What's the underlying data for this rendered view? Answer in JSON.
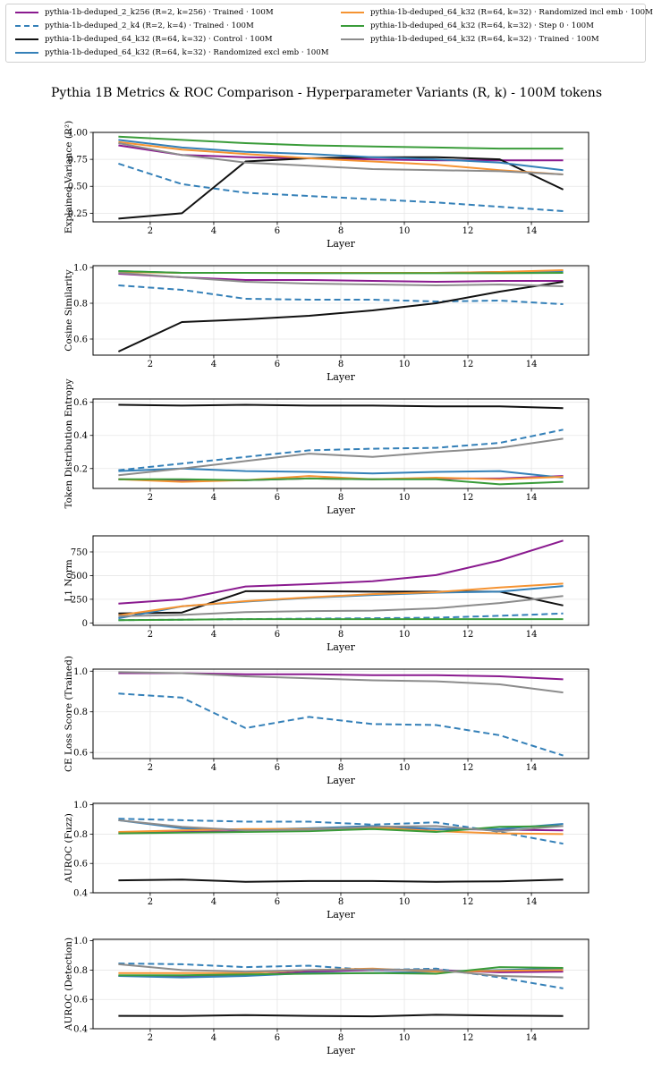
{
  "title": "Pythia 1B Metrics & ROC Comparison - Hyperparameter Variants (R, k) - 100M tokens",
  "legend": [
    {
      "key": "k256",
      "label": "pythia-1b-deduped_2_k256 (R=2, k=256) · Trained · 100M",
      "color": "#8a1a8f",
      "dash": "solid"
    },
    {
      "key": "k4",
      "label": "pythia-1b-deduped_2_k4 (R=2, k=4) · Trained · 100M",
      "color": "#3480b8",
      "dash": "dashed"
    },
    {
      "key": "control",
      "label": "pythia-1b-deduped_64_k32 (R=64, k=32) · Control · 100M",
      "color": "#111111",
      "dash": "solid"
    },
    {
      "key": "rand_excl",
      "label": "pythia-1b-deduped_64_k32 (R=64, k=32) · Randomized excl emb · 100M",
      "color": "#3480b8",
      "dash": "solid"
    },
    {
      "key": "rand_incl",
      "label": "pythia-1b-deduped_64_k32 (R=64, k=32) · Randomized incl emb · 100M",
      "color": "#f59332",
      "dash": "solid"
    },
    {
      "key": "step0",
      "label": "pythia-1b-deduped_64_k32 (R=64, k=32) · Step 0 · 100M",
      "color": "#3a9c3a",
      "dash": "solid"
    },
    {
      "key": "trained",
      "label": "pythia-1b-deduped_64_k32 (R=64, k=32) · Trained · 100M",
      "color": "#8c8c8c",
      "dash": "solid"
    }
  ],
  "chart_data": [
    {
      "type": "line",
      "ylabel": "Explained Variance (R²)",
      "xlabel": "Layer",
      "x": [
        1,
        3,
        5,
        7,
        9,
        11,
        13,
        15
      ],
      "xlim": [
        0.2,
        15.8
      ],
      "ylim": [
        0.17,
        1.0
      ],
      "xticks": [
        2,
        4,
        6,
        8,
        10,
        12,
        14
      ],
      "yticks": [
        0.25,
        0.5,
        0.75,
        1.0
      ],
      "yticklabels": [
        "0.25",
        "0.50",
        "0.75",
        "1.00"
      ],
      "series": [
        {
          "name": "k256",
          "values": [
            0.88,
            0.79,
            0.77,
            0.76,
            0.75,
            0.74,
            0.74,
            0.74
          ]
        },
        {
          "name": "k4",
          "values": [
            0.71,
            0.52,
            0.44,
            0.41,
            0.38,
            0.35,
            0.31,
            0.27
          ]
        },
        {
          "name": "control",
          "values": [
            0.2,
            0.25,
            0.73,
            0.76,
            0.77,
            0.77,
            0.75,
            0.47
          ]
        },
        {
          "name": "rand_excl",
          "values": [
            0.93,
            0.86,
            0.82,
            0.8,
            0.77,
            0.75,
            0.72,
            0.65
          ]
        },
        {
          "name": "rand_incl",
          "values": [
            0.91,
            0.84,
            0.8,
            0.76,
            0.73,
            0.7,
            0.65,
            0.61
          ]
        },
        {
          "name": "step0",
          "values": [
            0.96,
            0.93,
            0.9,
            0.88,
            0.87,
            0.86,
            0.85,
            0.85
          ]
        },
        {
          "name": "trained",
          "values": [
            0.9,
            0.79,
            0.72,
            0.69,
            0.66,
            0.65,
            0.64,
            0.61
          ]
        }
      ]
    },
    {
      "type": "line",
      "ylabel": "Cosine Similarity",
      "xlabel": "Layer",
      "x": [
        1,
        3,
        5,
        7,
        9,
        11,
        13,
        15
      ],
      "xlim": [
        0.2,
        15.8
      ],
      "ylim": [
        0.51,
        1.01
      ],
      "xticks": [
        2,
        4,
        6,
        8,
        10,
        12,
        14
      ],
      "yticks": [
        0.6,
        0.8,
        1.0
      ],
      "yticklabels": [
        "0.6",
        "0.8",
        "1.0"
      ],
      "series": [
        {
          "name": "k256",
          "values": [
            0.965,
            0.945,
            0.93,
            0.93,
            0.925,
            0.92,
            0.925,
            0.925
          ]
        },
        {
          "name": "k4",
          "values": [
            0.9,
            0.875,
            0.825,
            0.82,
            0.82,
            0.81,
            0.815,
            0.795
          ]
        },
        {
          "name": "control",
          "values": [
            0.53,
            0.695,
            0.71,
            0.73,
            0.76,
            0.8,
            0.865,
            0.92
          ]
        },
        {
          "name": "rand_excl",
          "values": [
            0.98,
            0.97,
            0.97,
            0.97,
            0.97,
            0.97,
            0.975,
            0.98
          ]
        },
        {
          "name": "rand_incl",
          "values": [
            0.975,
            0.97,
            0.97,
            0.97,
            0.97,
            0.97,
            0.975,
            0.985
          ]
        },
        {
          "name": "step0",
          "values": [
            0.98,
            0.97,
            0.97,
            0.968,
            0.968,
            0.968,
            0.968,
            0.97
          ]
        },
        {
          "name": "trained",
          "values": [
            0.97,
            0.945,
            0.92,
            0.91,
            0.905,
            0.9,
            0.905,
            0.895
          ]
        }
      ]
    },
    {
      "type": "line",
      "ylabel": "Token Distribution Entropy",
      "xlabel": "Layer",
      "x": [
        1,
        3,
        5,
        7,
        9,
        11,
        13,
        15
      ],
      "xlim": [
        0.2,
        15.8
      ],
      "ylim": [
        0.08,
        0.62
      ],
      "xticks": [
        2,
        4,
        6,
        8,
        10,
        12,
        14
      ],
      "yticks": [
        0.2,
        0.4,
        0.6
      ],
      "yticklabels": [
        "0.2",
        "0.4",
        "0.6"
      ],
      "series": [
        {
          "name": "k256",
          "values": [
            0.135,
            0.13,
            0.13,
            0.14,
            0.135,
            0.14,
            0.14,
            0.155
          ]
        },
        {
          "name": "k4",
          "values": [
            0.19,
            0.23,
            0.27,
            0.31,
            0.32,
            0.325,
            0.355,
            0.435
          ]
        },
        {
          "name": "control",
          "values": [
            0.585,
            0.58,
            0.585,
            0.58,
            0.58,
            0.575,
            0.575,
            0.565
          ]
        },
        {
          "name": "rand_excl",
          "values": [
            0.185,
            0.2,
            0.185,
            0.18,
            0.17,
            0.18,
            0.185,
            0.145
          ]
        },
        {
          "name": "rand_incl",
          "values": [
            0.135,
            0.12,
            0.13,
            0.155,
            0.135,
            0.145,
            0.135,
            0.15
          ]
        },
        {
          "name": "step0",
          "values": [
            0.135,
            0.135,
            0.13,
            0.14,
            0.135,
            0.135,
            0.105,
            0.12
          ]
        },
        {
          "name": "trained",
          "values": [
            0.16,
            0.2,
            0.245,
            0.29,
            0.27,
            0.3,
            0.325,
            0.38
          ]
        }
      ]
    },
    {
      "type": "line",
      "ylabel": "L1 Norm",
      "xlabel": "Layer",
      "x": [
        1,
        3,
        5,
        7,
        9,
        11,
        13,
        15
      ],
      "xlim": [
        0.2,
        15.8
      ],
      "ylim": [
        -25,
        920
      ],
      "xticks": [
        2,
        4,
        6,
        8,
        10,
        12,
        14
      ],
      "yticks": [
        0,
        250,
        500,
        750
      ],
      "yticklabels": [
        "0",
        "250",
        "500",
        "750"
      ],
      "series": [
        {
          "name": "k256",
          "values": [
            205,
            250,
            385,
            410,
            440,
            505,
            660,
            870
          ]
        },
        {
          "name": "k4",
          "values": [
            30,
            35,
            40,
            45,
            50,
            55,
            75,
            100
          ]
        },
        {
          "name": "control",
          "values": [
            100,
            110,
            335,
            335,
            330,
            330,
            330,
            185
          ]
        },
        {
          "name": "rand_excl",
          "values": [
            50,
            175,
            225,
            265,
            295,
            320,
            330,
            390
          ]
        },
        {
          "name": "rand_incl",
          "values": [
            80,
            175,
            230,
            270,
            305,
            325,
            375,
            415
          ]
        },
        {
          "name": "step0",
          "values": [
            30,
            35,
            40,
            40,
            40,
            40,
            40,
            40
          ]
        },
        {
          "name": "trained",
          "values": [
            70,
            85,
            115,
            125,
            130,
            155,
            210,
            285
          ]
        }
      ]
    },
    {
      "type": "line",
      "ylabel": "CE Loss Score (Trained)",
      "xlabel": "Layer",
      "x": [
        1,
        3,
        5,
        7,
        9,
        11,
        13,
        15
      ],
      "xlim": [
        0.2,
        15.8
      ],
      "ylim": [
        0.57,
        1.01
      ],
      "xticks": [
        2,
        4,
        6,
        8,
        10,
        12,
        14
      ],
      "yticks": [
        0.6,
        0.8,
        1.0
      ],
      "yticklabels": [
        "0.6",
        "0.8",
        "1.0"
      ],
      "series": [
        {
          "name": "k256",
          "values": [
            0.99,
            0.99,
            0.985,
            0.985,
            0.98,
            0.98,
            0.975,
            0.96
          ]
        },
        {
          "name": "k4",
          "values": [
            0.89,
            0.87,
            0.72,
            0.775,
            0.74,
            0.735,
            0.685,
            0.585
          ]
        },
        {
          "name": "trained",
          "values": [
            0.995,
            0.99,
            0.975,
            0.965,
            0.955,
            0.95,
            0.935,
            0.895
          ]
        }
      ]
    },
    {
      "type": "line",
      "ylabel": "AUROC (Fuzz)",
      "xlabel": "Layer",
      "x": [
        1,
        3,
        5,
        7,
        9,
        11,
        13,
        15
      ],
      "xlim": [
        0.2,
        15.8
      ],
      "ylim": [
        0.4,
        1.01
      ],
      "xticks": [
        2,
        4,
        6,
        8,
        10,
        12,
        14
      ],
      "yticks": [
        0.4,
        0.6,
        0.8,
        1.0
      ],
      "yticklabels": [
        "0.4",
        "0.6",
        "0.8",
        "1.0"
      ],
      "series": [
        {
          "name": "k256",
          "values": [
            0.81,
            0.815,
            0.82,
            0.825,
            0.845,
            0.835,
            0.83,
            0.825
          ]
        },
        {
          "name": "k4",
          "values": [
            0.905,
            0.895,
            0.885,
            0.885,
            0.865,
            0.88,
            0.815,
            0.735
          ]
        },
        {
          "name": "control",
          "values": [
            0.485,
            0.49,
            0.475,
            0.48,
            0.48,
            0.475,
            0.478,
            0.49
          ]
        },
        {
          "name": "rand_excl",
          "values": [
            0.895,
            0.84,
            0.83,
            0.84,
            0.855,
            0.835,
            0.835,
            0.87
          ]
        },
        {
          "name": "rand_incl",
          "values": [
            0.815,
            0.825,
            0.835,
            0.835,
            0.845,
            0.82,
            0.805,
            0.8
          ]
        },
        {
          "name": "step0",
          "values": [
            0.805,
            0.81,
            0.815,
            0.82,
            0.835,
            0.815,
            0.85,
            0.855
          ]
        },
        {
          "name": "trained",
          "values": [
            0.895,
            0.85,
            0.825,
            0.83,
            0.85,
            0.855,
            0.82,
            0.855
          ]
        }
      ]
    },
    {
      "type": "line",
      "ylabel": "AUROC (Detection)",
      "xlabel": "Layer",
      "x": [
        1,
        3,
        5,
        7,
        9,
        11,
        13,
        15
      ],
      "xlim": [
        0.2,
        15.8
      ],
      "ylim": [
        0.4,
        1.01
      ],
      "xticks": [
        2,
        4,
        6,
        8,
        10,
        12,
        14
      ],
      "yticks": [
        0.4,
        0.6,
        0.8,
        1.0
      ],
      "yticklabels": [
        "0.4",
        "0.6",
        "0.8",
        "1.0"
      ],
      "series": [
        {
          "name": "k256",
          "values": [
            0.76,
            0.76,
            0.765,
            0.79,
            0.8,
            0.8,
            0.785,
            0.79
          ]
        },
        {
          "name": "k4",
          "values": [
            0.845,
            0.84,
            0.82,
            0.83,
            0.8,
            0.81,
            0.75,
            0.675
          ]
        },
        {
          "name": "control",
          "values": [
            0.488,
            0.487,
            0.493,
            0.488,
            0.485,
            0.495,
            0.49,
            0.487
          ]
        },
        {
          "name": "rand_excl",
          "values": [
            0.76,
            0.75,
            0.76,
            0.78,
            0.78,
            0.79,
            0.8,
            0.81
          ]
        },
        {
          "name": "rand_incl",
          "values": [
            0.78,
            0.78,
            0.78,
            0.8,
            0.81,
            0.79,
            0.795,
            0.8
          ]
        },
        {
          "name": "step0",
          "values": [
            0.765,
            0.765,
            0.77,
            0.775,
            0.78,
            0.775,
            0.82,
            0.815
          ]
        },
        {
          "name": "trained",
          "values": [
            0.84,
            0.8,
            0.79,
            0.8,
            0.805,
            0.8,
            0.76,
            0.75
          ]
        }
      ]
    }
  ]
}
